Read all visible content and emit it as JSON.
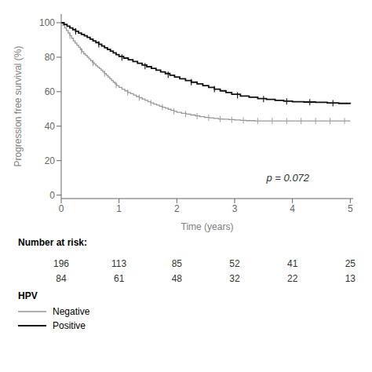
{
  "chart_data": {
    "type": "line",
    "xlabel": "Time (years)",
    "ylabel": "Progression free survival (%)",
    "xlim": [
      0,
      5.05
    ],
    "ylim": [
      -2,
      105
    ],
    "xticks": [
      0,
      1,
      2,
      3,
      4,
      5
    ],
    "yticks": [
      0,
      20,
      40,
      60,
      80,
      100
    ],
    "grid": false,
    "legend": "bottom",
    "legend_title": "HPV",
    "annotations": [
      {
        "text": "p = 0.072",
        "x": 3.55,
        "y": 8
      }
    ],
    "number_at_risk_label": "Number at risk:",
    "risk_times": [
      0,
      1,
      2,
      3,
      4,
      5
    ],
    "series": [
      {
        "name": "Negative",
        "color": "#999999",
        "line_style": "step",
        "x": [
          0.0,
          0.03,
          0.06,
          0.09,
          0.12,
          0.15,
          0.18,
          0.21,
          0.24,
          0.27,
          0.3,
          0.33,
          0.36,
          0.39,
          0.42,
          0.45,
          0.48,
          0.51,
          0.54,
          0.57,
          0.6,
          0.63,
          0.66,
          0.69,
          0.72,
          0.75,
          0.78,
          0.81,
          0.84,
          0.87,
          0.9,
          0.93,
          0.96,
          1.0,
          1.05,
          1.1,
          1.15,
          1.2,
          1.25,
          1.3,
          1.35,
          1.4,
          1.45,
          1.5,
          1.55,
          1.6,
          1.65,
          1.7,
          1.75,
          1.8,
          1.85,
          1.9,
          1.95,
          2.0,
          2.08,
          2.16,
          2.24,
          2.32,
          2.4,
          2.48,
          2.56,
          2.64,
          2.72,
          2.8,
          2.9,
          3.0,
          3.1,
          3.2,
          3.35,
          3.5,
          3.65,
          3.8,
          3.95,
          4.1,
          4.25,
          4.4,
          4.55,
          4.7,
          4.85,
          5.0
        ],
        "values": [
          100,
          98.5,
          97,
          95.5,
          94,
          92.5,
          91,
          89.5,
          88.2,
          87,
          85.8,
          84.5,
          83.2,
          82,
          81,
          80,
          79,
          78,
          77,
          76,
          75,
          74.2,
          73.4,
          72.5,
          71.5,
          70.5,
          69.5,
          68.5,
          67.5,
          66.5,
          65.5,
          64.5,
          63.5,
          62.5,
          61.5,
          60.5,
          59.5,
          58.8,
          58,
          57.2,
          56.5,
          55.8,
          55,
          54.2,
          53.5,
          52.8,
          52.2,
          51.6,
          51,
          50.4,
          49.8,
          49.2,
          48.6,
          48,
          47.5,
          47,
          46.5,
          46,
          45.5,
          45.1,
          44.8,
          44.5,
          44.2,
          44,
          43.8,
          43.6,
          43.4,
          43.2,
          43.0,
          43.0,
          43.0,
          43.0,
          43.0,
          43.0,
          43.0,
          43.0,
          43.0,
          43.0,
          43.0,
          43.0
        ],
        "censor_x": [
          0.15,
          0.35,
          0.55,
          0.75,
          0.95,
          1.15,
          1.35,
          1.55,
          1.75,
          1.95,
          2.15,
          2.35,
          2.55,
          2.75,
          2.95,
          3.15,
          3.4,
          3.65,
          3.9,
          4.15,
          4.4,
          4.65,
          4.9
        ],
        "censor_y": [
          92.5,
          83.63,
          76.67,
          70.5,
          63.83,
          59.5,
          56.5,
          53.5,
          51,
          48.6,
          47.06,
          45.81,
          44.84,
          44.13,
          43.7,
          43.3,
          43,
          43,
          43,
          43,
          43,
          43,
          43
        ],
        "at_risk": [
          196,
          113,
          85,
          52,
          41,
          25
        ]
      },
      {
        "name": "Positive",
        "color": "#111111",
        "line_style": "step",
        "x": [
          0.0,
          0.05,
          0.1,
          0.15,
          0.2,
          0.25,
          0.3,
          0.35,
          0.4,
          0.45,
          0.5,
          0.55,
          0.6,
          0.65,
          0.7,
          0.75,
          0.8,
          0.85,
          0.9,
          0.95,
          1.0,
          1.08,
          1.16,
          1.24,
          1.32,
          1.4,
          1.48,
          1.56,
          1.64,
          1.72,
          1.8,
          1.88,
          1.96,
          2.05,
          2.15,
          2.25,
          2.35,
          2.45,
          2.55,
          2.65,
          2.75,
          2.85,
          2.95,
          3.1,
          3.25,
          3.4,
          3.55,
          3.7,
          3.85,
          4.0,
          4.2,
          4.4,
          4.6,
          4.8,
          5.0
        ],
        "values": [
          100,
          99,
          98,
          97,
          96,
          95,
          94,
          93.2,
          92.4,
          91.5,
          90.5,
          89.5,
          88.5,
          87.5,
          86.5,
          85.5,
          84.5,
          83.5,
          82.5,
          81.5,
          80.5,
          79.5,
          78.5,
          77.5,
          76.5,
          75.5,
          74.5,
          73.5,
          72.5,
          71.5,
          70.5,
          69.5,
          68.5,
          67.5,
          66.5,
          65.5,
          64.5,
          63.5,
          62.5,
          61.5,
          60.5,
          59.5,
          58.5,
          57.5,
          56.8,
          56.0,
          55.5,
          55.0,
          54.5,
          54.2,
          54.0,
          53.8,
          53.5,
          53.2,
          53.0
        ],
        "censor_x": [
          0.25,
          0.65,
          1.05,
          1.45,
          1.85,
          2.25,
          2.65,
          3.05,
          3.5,
          3.9,
          4.3,
          4.7
        ],
        "censor_y": [
          95,
          87.5,
          79.88,
          74.88,
          69.88,
          65.5,
          61.5,
          57.83,
          55.67,
          54.4,
          53.9,
          53.35
        ],
        "at_risk": [
          84,
          61,
          48,
          32,
          22,
          13
        ]
      }
    ]
  }
}
